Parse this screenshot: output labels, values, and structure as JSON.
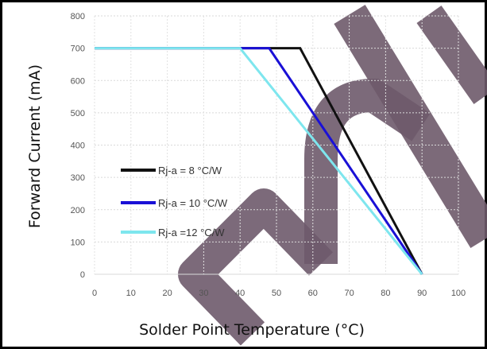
{
  "chart_data": {
    "type": "line",
    "title": "",
    "xlabel": "Solder Point Temperature (°C)",
    "ylabel": "Forward Current (mA)",
    "xlim": [
      0,
      100
    ],
    "ylim": [
      0,
      800
    ],
    "x_ticks": [
      0,
      10,
      20,
      30,
      40,
      50,
      60,
      70,
      80,
      90,
      100
    ],
    "y_ticks": [
      0,
      100,
      200,
      300,
      400,
      500,
      600,
      700,
      800
    ],
    "grid": true,
    "legend_position": "center-left",
    "series": [
      {
        "name": "Rj-a = 8 °C/W",
        "color": "#111111",
        "x": [
          0,
          56.5,
          90
        ],
        "y": [
          700,
          700,
          0
        ]
      },
      {
        "name": "Rj-a = 10 °C/W",
        "color": "#1a10d6",
        "x": [
          0,
          48,
          90
        ],
        "y": [
          700,
          700,
          0
        ]
      },
      {
        "name": "Rj-a =12 °C/W",
        "color": "#7ee6ee",
        "x": [
          0,
          40,
          90
        ],
        "y": [
          700,
          700,
          0
        ]
      }
    ]
  },
  "watermark": {
    "color": "#6e5a6b"
  }
}
